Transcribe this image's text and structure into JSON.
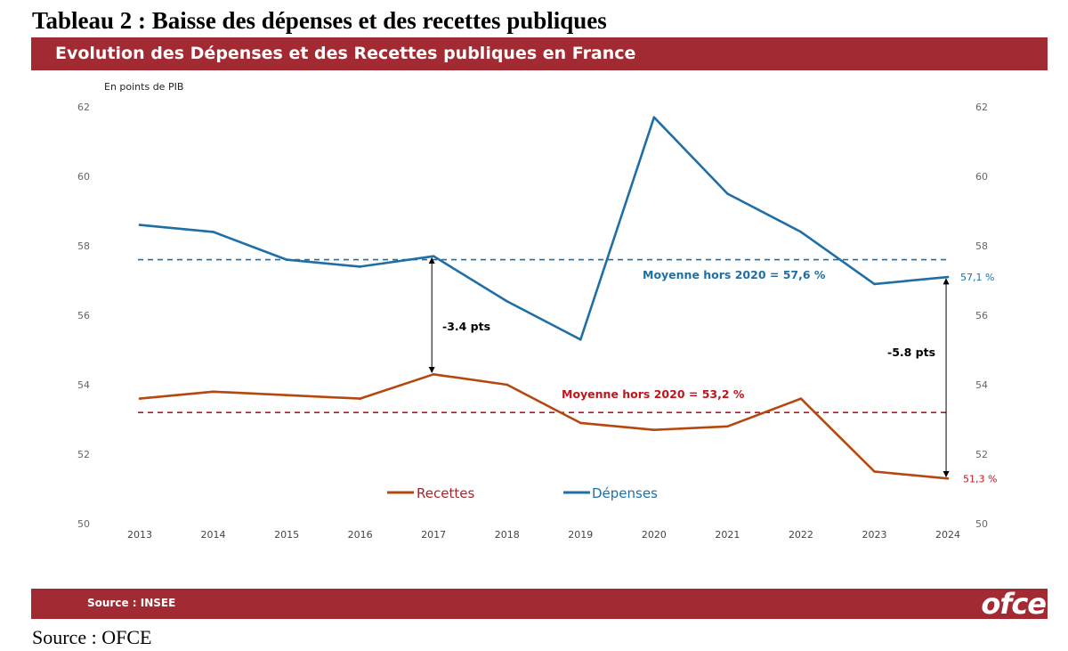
{
  "document": {
    "title": "Tableau 2 : Baisse des dépenses et des recettes publiques",
    "source": "Source : OFCE"
  },
  "banner": {
    "title": "Evolution des Dépenses et des Recettes publiques en France"
  },
  "footer": {
    "source": "Source : INSEE",
    "logo_text": "ofce"
  },
  "colors": {
    "banner": "#a22a32",
    "depenses": "#1f6fa6",
    "recettes": "#b5480f",
    "avg_recettes": "#c0141e"
  },
  "chart_data": {
    "type": "line",
    "unit_label": "En points de PIB",
    "categories": [
      "2013",
      "2014",
      "2015",
      "2016",
      "2017",
      "2018",
      "2019",
      "2020",
      "2021",
      "2022",
      "2023",
      "2024"
    ],
    "ylim": [
      50,
      62
    ],
    "yticks": [
      50,
      52,
      54,
      56,
      58,
      60,
      62
    ],
    "secondary_axis": true,
    "grid": false,
    "series": [
      {
        "name": "Recettes",
        "color": "#b5480f",
        "values": [
          53.6,
          53.8,
          53.7,
          53.6,
          54.3,
          54.0,
          52.9,
          52.7,
          52.8,
          53.6,
          51.5,
          51.3
        ]
      },
      {
        "name": "Dépenses",
        "color": "#1f6fa6",
        "values": [
          58.6,
          58.4,
          57.6,
          57.4,
          57.7,
          56.4,
          55.3,
          61.7,
          59.5,
          58.4,
          56.9,
          57.1
        ]
      }
    ],
    "reference_lines": [
      {
        "label": "Moyenne hors 2020 = 57,6 %",
        "value": 57.6,
        "color": "#1f6fa6"
      },
      {
        "label": "Moyenne hors 2020 = 53,2 %",
        "value": 53.2,
        "color": "#c0141e"
      }
    ],
    "annotations": [
      {
        "label": "-3.4 pts",
        "x": "2017",
        "from": 57.7,
        "to": 54.3
      },
      {
        "label": "-5.8 pts",
        "x": "2024",
        "from": 57.1,
        "to": 51.3
      }
    ],
    "end_labels": [
      {
        "label": "57,1 %",
        "series": "Dépenses"
      },
      {
        "label": "51,3 %",
        "series": "Recettes"
      }
    ],
    "legend_position": "bottom-center"
  }
}
